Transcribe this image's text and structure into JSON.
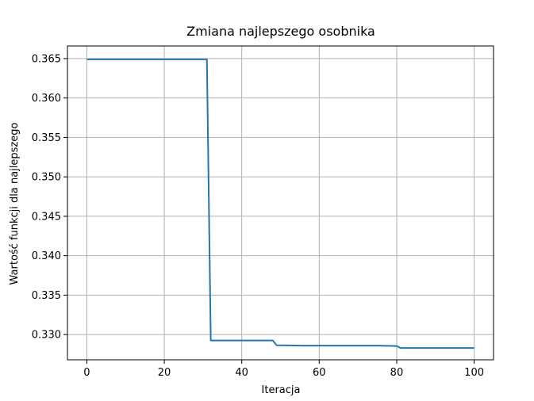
{
  "chart_data": {
    "type": "line",
    "title": "Zmiana najlepszego osobnika",
    "xlabel": "Iteracja",
    "ylabel": "Wartość funkcji dla najlepszego",
    "xlim": [
      -5,
      105
    ],
    "ylim": [
      0.3268,
      0.3666
    ],
    "xticks": [
      0,
      20,
      40,
      60,
      80,
      100
    ],
    "xtick_labels": [
      "0",
      "20",
      "40",
      "60",
      "80",
      "100"
    ],
    "yticks": [
      0.33,
      0.335,
      0.34,
      0.345,
      0.35,
      0.355,
      0.36,
      0.365
    ],
    "ytick_labels": [
      "0.330",
      "0.335",
      "0.340",
      "0.345",
      "0.350",
      "0.355",
      "0.360",
      "0.365"
    ],
    "grid": true,
    "colors": {
      "line": "#1f77b4"
    },
    "series": [
      {
        "x": [
          0,
          31,
          32,
          48,
          49,
          56,
          75,
          80,
          81,
          100
        ],
        "y": [
          0.3649,
          0.3649,
          0.32925,
          0.32925,
          0.32865,
          0.3286,
          0.3286,
          0.32855,
          0.3283,
          0.3283
        ]
      }
    ]
  }
}
